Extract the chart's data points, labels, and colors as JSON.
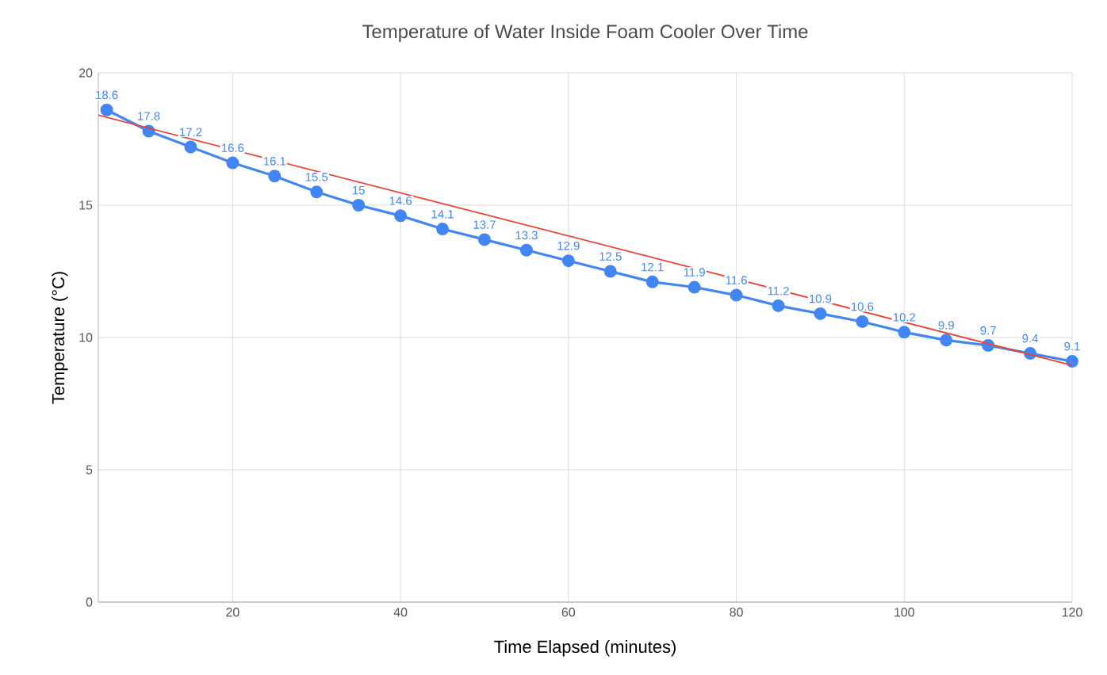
{
  "chart_data": {
    "type": "line",
    "title": "Temperature of Water Inside Foam Cooler Over Time",
    "xlabel": "Time Elapsed (minutes)",
    "ylabel": "Temperature (°C)",
    "xlim": [
      4,
      120
    ],
    "xticks": [
      20,
      40,
      60,
      80,
      100,
      120
    ],
    "ylim": [
      0,
      20
    ],
    "yticks": [
      0,
      5,
      10,
      15,
      20
    ],
    "grid": true,
    "marker": "circle",
    "line_style": "solid",
    "series": [
      {
        "color": "#4285f4",
        "x": [
          5,
          10,
          15,
          20,
          25,
          30,
          35,
          40,
          45,
          50,
          55,
          60,
          65,
          70,
          75,
          80,
          85,
          90,
          95,
          100,
          105,
          110,
          115,
          120
        ],
        "values": [
          18.6,
          17.8,
          17.2,
          16.6,
          16.1,
          15.5,
          15,
          14.6,
          14.1,
          13.7,
          13.3,
          12.9,
          12.5,
          12.1,
          11.9,
          11.6,
          11.2,
          10.9,
          10.6,
          10.2,
          9.9,
          9.7,
          9.4,
          9.1
        ],
        "value_labels": [
          "18.6",
          "17.8",
          "17.2",
          "16.6",
          "16.1",
          "15.5",
          "15",
          "14.6",
          "14.1",
          "13.7",
          "13.3",
          "12.9",
          "12.5",
          "12.1",
          "11.9",
          "11.6",
          "11.2",
          "10.9",
          "10.6",
          "10.2",
          "9.9",
          "9.7",
          "9.4",
          "9.1"
        ]
      },
      {
        "color": "#ea4335",
        "marker": "none",
        "x": [
          4,
          120
        ],
        "values": [
          18.4,
          8.95
        ]
      }
    ]
  }
}
